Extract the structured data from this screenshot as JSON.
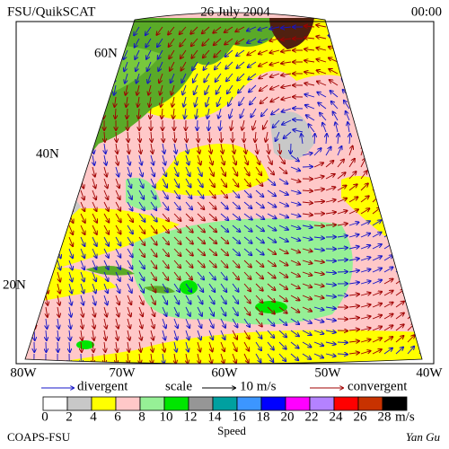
{
  "header": {
    "left": "FSU/QuikSCAT",
    "center": "26 July 2004",
    "right": "00:00"
  },
  "map": {
    "lat_labels": [
      "60N",
      "40N",
      "20N"
    ],
    "lon_labels": [
      "80W",
      "70W",
      "60W",
      "50W",
      "40W"
    ]
  },
  "legend": {
    "divergent": "divergent",
    "scale": "scale",
    "scale_value": "10 m/s",
    "convergent": "convergent",
    "divergent_color": "#1414c8",
    "convergent_color": "#a00000"
  },
  "colorbar": {
    "ticks": [
      0,
      2,
      4,
      6,
      8,
      10,
      12,
      14,
      16,
      18,
      20,
      22,
      24,
      26,
      28
    ],
    "unit": "m/s",
    "label": "Speed",
    "colors": [
      "#ffffff",
      "#c8c8c8",
      "#ffff00",
      "#ffc8c8",
      "#96f096",
      "#00e600",
      "#969696",
      "#00a0a0",
      "#3c96ff",
      "#0000ff",
      "#ff00ff",
      "#b482ff",
      "#ff0000",
      "#c83200",
      "#000000"
    ]
  },
  "footer": {
    "left": "COAPS-FSU",
    "right": "Yan Gu"
  }
}
